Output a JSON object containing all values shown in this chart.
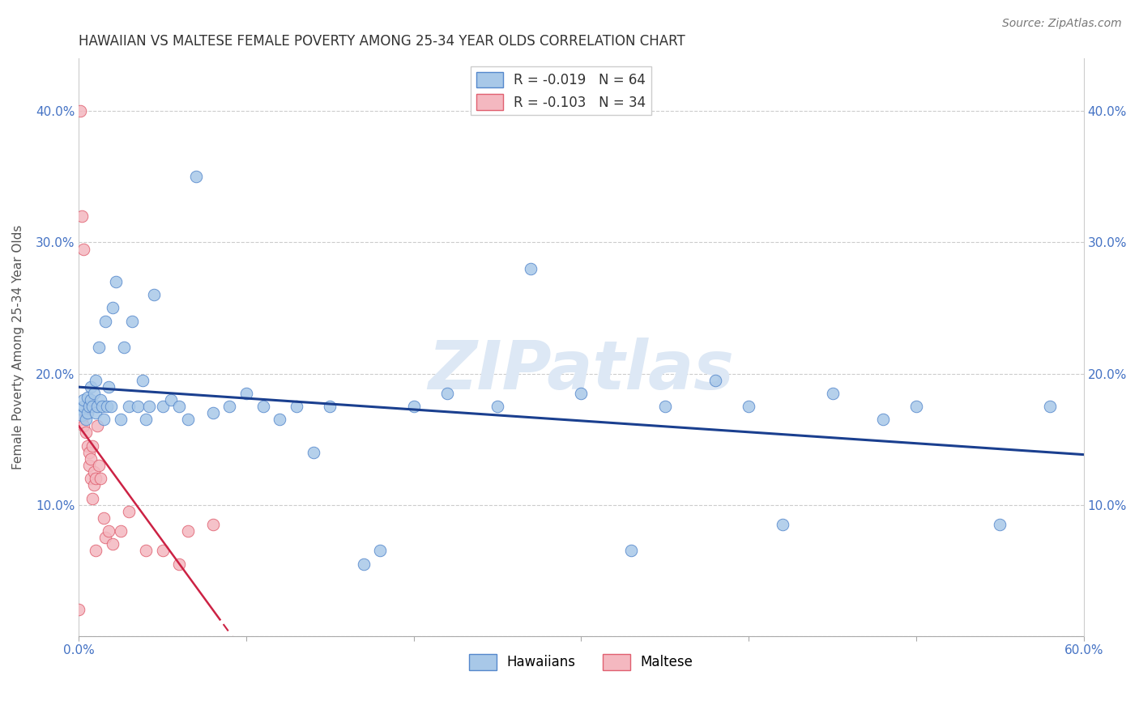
{
  "title": "HAWAIIAN VS MALTESE FEMALE POVERTY AMONG 25-34 YEAR OLDS CORRELATION CHART",
  "source": "Source: ZipAtlas.com",
  "xlabel": "",
  "ylabel": "Female Poverty Among 25-34 Year Olds",
  "xlim": [
    0.0,
    0.6
  ],
  "ylim": [
    0.0,
    0.44
  ],
  "xticks": [
    0.0,
    0.1,
    0.2,
    0.3,
    0.4,
    0.5,
    0.6
  ],
  "yticks": [
    0.0,
    0.1,
    0.2,
    0.3,
    0.4
  ],
  "xtick_labels": [
    "0.0%",
    "",
    "",
    "",
    "",
    "",
    "60.0%"
  ],
  "ytick_labels": [
    "",
    "10.0%",
    "20.0%",
    "30.0%",
    "40.0%"
  ],
  "hawaiian_color": "#a8c8e8",
  "maltese_color": "#f4b8c0",
  "hawaiian_edge": "#5588cc",
  "maltese_edge": "#e06070",
  "line_hawaiian": "#1a3f8f",
  "line_maltese": "#cc2244",
  "R_hawaiian": -0.019,
  "N_hawaiian": 64,
  "R_maltese": -0.103,
  "N_maltese": 34,
  "hawaiian_x": [
    0.001,
    0.002,
    0.003,
    0.003,
    0.004,
    0.005,
    0.005,
    0.006,
    0.007,
    0.007,
    0.008,
    0.009,
    0.01,
    0.01,
    0.011,
    0.012,
    0.013,
    0.014,
    0.015,
    0.016,
    0.017,
    0.018,
    0.019,
    0.02,
    0.022,
    0.025,
    0.027,
    0.03,
    0.032,
    0.035,
    0.038,
    0.04,
    0.042,
    0.045,
    0.05,
    0.055,
    0.06,
    0.065,
    0.07,
    0.08,
    0.09,
    0.1,
    0.11,
    0.12,
    0.13,
    0.14,
    0.15,
    0.17,
    0.18,
    0.2,
    0.22,
    0.25,
    0.27,
    0.3,
    0.33,
    0.35,
    0.38,
    0.4,
    0.42,
    0.45,
    0.48,
    0.5,
    0.55,
    0.58
  ],
  "hawaiian_y": [
    0.173,
    0.168,
    0.175,
    0.18,
    0.165,
    0.17,
    0.182,
    0.175,
    0.19,
    0.18,
    0.175,
    0.185,
    0.17,
    0.195,
    0.175,
    0.22,
    0.18,
    0.175,
    0.165,
    0.24,
    0.175,
    0.19,
    0.175,
    0.25,
    0.27,
    0.165,
    0.22,
    0.175,
    0.24,
    0.175,
    0.195,
    0.165,
    0.175,
    0.26,
    0.175,
    0.18,
    0.175,
    0.165,
    0.35,
    0.17,
    0.175,
    0.185,
    0.175,
    0.165,
    0.175,
    0.14,
    0.175,
    0.055,
    0.065,
    0.175,
    0.185,
    0.175,
    0.28,
    0.185,
    0.065,
    0.175,
    0.195,
    0.175,
    0.085,
    0.185,
    0.165,
    0.175,
    0.085,
    0.175
  ],
  "maltese_x": [
    0.0,
    0.001,
    0.002,
    0.002,
    0.003,
    0.003,
    0.004,
    0.004,
    0.005,
    0.005,
    0.006,
    0.006,
    0.007,
    0.007,
    0.008,
    0.008,
    0.009,
    0.009,
    0.01,
    0.01,
    0.011,
    0.012,
    0.013,
    0.015,
    0.016,
    0.018,
    0.02,
    0.025,
    0.03,
    0.04,
    0.05,
    0.06,
    0.065,
    0.08
  ],
  "maltese_y": [
    0.02,
    0.4,
    0.32,
    0.165,
    0.295,
    0.16,
    0.17,
    0.155,
    0.175,
    0.145,
    0.14,
    0.13,
    0.12,
    0.135,
    0.145,
    0.105,
    0.125,
    0.115,
    0.12,
    0.065,
    0.16,
    0.13,
    0.12,
    0.09,
    0.075,
    0.08,
    0.07,
    0.08,
    0.095,
    0.065,
    0.065,
    0.055,
    0.08,
    0.085
  ],
  "background_color": "#ffffff",
  "grid_color": "#cccccc",
  "title_color": "#333333",
  "tick_color": "#4472c4",
  "watermark": "ZIPatlas",
  "watermark_color": "#dde8f5"
}
